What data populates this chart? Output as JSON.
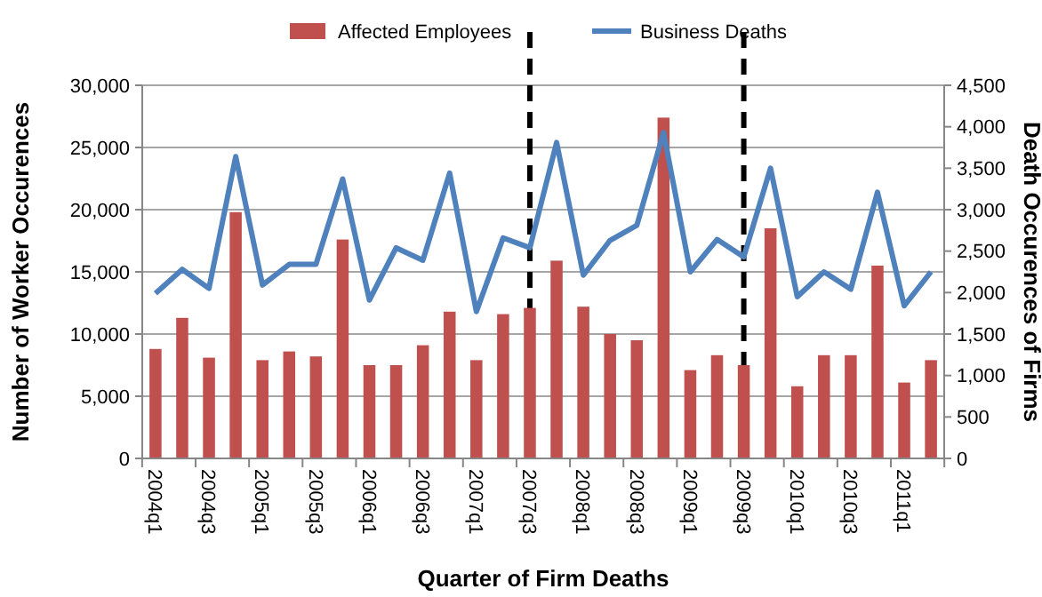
{
  "chart_data": {
    "type": "bar",
    "xlabel": "Quarter of Firm Deaths",
    "ylabel": "Number of Worker Occurences",
    "y2label": "Death Occurences of Firms",
    "categories": [
      "2004q1",
      null,
      "2004q3",
      null,
      "2005q1",
      null,
      "2005q3",
      null,
      "2006q1",
      null,
      "2006q3",
      null,
      "2007q1",
      null,
      "2007q3",
      null,
      "2008q1",
      null,
      "2008q3",
      null,
      "2009q1",
      null,
      "2009q3",
      null,
      "2010q1",
      null,
      "2010q3",
      null,
      "2011q1",
      null
    ],
    "series": [
      {
        "name": "Affected Employees",
        "color": "#c0504d",
        "values": [
          8800,
          11300,
          8100,
          19800,
          7900,
          8600,
          8200,
          17600,
          7500,
          7500,
          9100,
          11800,
          7900,
          11600,
          12100,
          15900,
          12200,
          10000,
          9500,
          27400,
          7100,
          8300,
          7500,
          18500,
          5800,
          8300,
          8300,
          15500,
          6100,
          7900
        ]
      },
      {
        "name": "Business Deaths",
        "type": "line",
        "axis": "y2",
        "color": "#4f81bd",
        "values": [
          1990,
          2280,
          2050,
          3640,
          2090,
          2340,
          2340,
          3370,
          1910,
          2540,
          2390,
          3440,
          1770,
          2660,
          2540,
          3810,
          2210,
          2630,
          2810,
          3930,
          2250,
          2640,
          2430,
          3500,
          1950,
          2250,
          2040,
          3210,
          1840,
          2250
        ]
      }
    ],
    "ylim": [
      0,
      30000
    ],
    "yticks": [
      {
        "value": 0,
        "label": "0"
      },
      {
        "value": 5000,
        "label": "5,000"
      },
      {
        "value": 10000,
        "label": "10,000"
      },
      {
        "value": 15000,
        "label": "15,000"
      },
      {
        "value": 20000,
        "label": "20,000"
      },
      {
        "value": 25000,
        "label": "25,000"
      },
      {
        "value": 30000,
        "label": "30,000"
      }
    ],
    "y2lim": [
      0,
      4500
    ],
    "y2ticks": [
      0,
      500,
      {
        "value": 1000,
        "label": "1,000"
      },
      {
        "value": 1500,
        "label": "1,500"
      },
      {
        "value": 2000,
        "label": "2,000"
      },
      {
        "value": 2500,
        "label": "2,500"
      },
      {
        "value": 3000,
        "label": "3,000"
      },
      {
        "value": 3500,
        "label": "3,500"
      },
      {
        "value": 4000,
        "label": "4,000"
      },
      {
        "value": 4500,
        "label": "4,500"
      }
    ],
    "ref_lines": [
      {
        "axis": "x",
        "value": "2007q3",
        "color": "#000000",
        "line_style": "dashed"
      },
      {
        "axis": "x",
        "value": "2009q3",
        "color": "#000000",
        "line_style": "dashed"
      }
    ],
    "grid": "y",
    "legend": "top",
    "marker": "none",
    "line_style": "solid"
  }
}
